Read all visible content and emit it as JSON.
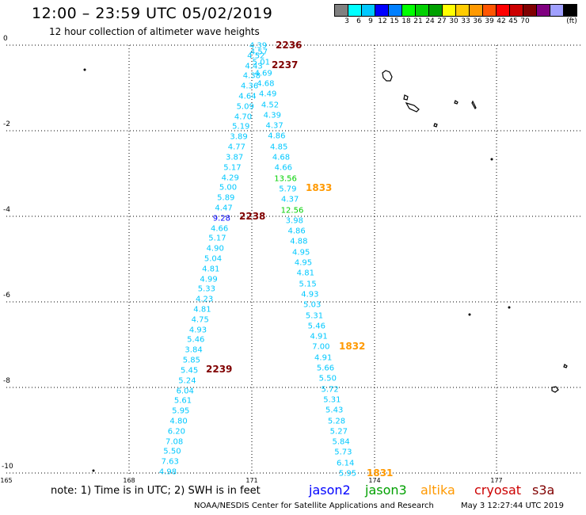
{
  "header": {
    "title": "12:00 – 23:59 UTC 05/02/2019",
    "subtitle": "12 hour collection of altimeter wave heights"
  },
  "colorbar": {
    "unit": "(ft)",
    "colors": [
      "#808080",
      "#00ffff",
      "#00c8ff",
      "#0000ff",
      "#0080ff",
      "#00ff00",
      "#00d000",
      "#00a000",
      "#ffff00",
      "#ffcc00",
      "#ff9900",
      "#ff5500",
      "#ff0000",
      "#cc0000",
      "#800000",
      "#800080",
      "#a0a0ff",
      "#000000"
    ],
    "labels": [
      "3",
      "6",
      "9",
      "12",
      "15",
      "18",
      "21",
      "24",
      "27",
      "30",
      "33",
      "36",
      "39",
      "42",
      "45",
      "70"
    ]
  },
  "axes": {
    "y": [
      "0",
      "-2",
      "-4",
      "-6",
      "-8",
      "-10"
    ],
    "x": [
      "165",
      "168",
      "171",
      "174",
      "177"
    ]
  },
  "tracks": [
    {
      "name": "west",
      "values": [
        "4.39",
        "4.52",
        "4.43",
        "4.38",
        "4.36",
        "4.64",
        "5.09",
        "4.70",
        "5.19",
        "3.89",
        "4.77",
        "3.87",
        "5.17",
        "4.29",
        "5.00",
        "5.89",
        "4.47",
        "9.28",
        "4.66",
        "5.17",
        "4.90",
        "5.04",
        "4.81",
        "4.99",
        "5.33",
        "4.23",
        "4.81",
        "4.75",
        "4.93",
        "5.46",
        "3.84",
        "5.85",
        "5.45",
        "5.24",
        "6.04",
        "5.61",
        "5.95",
        "4.80",
        "6.20",
        "7.08",
        "5.50",
        "7.63",
        "4.98"
      ],
      "colors": [
        "#00c8ff",
        "#00c8ff",
        "#00c8ff",
        "#00c8ff",
        "#00c8ff",
        "#00c8ff",
        "#00c8ff",
        "#00c8ff",
        "#00c8ff",
        "#00c8ff",
        "#00c8ff",
        "#00c8ff",
        "#00c8ff",
        "#00c8ff",
        "#00c8ff",
        "#00c8ff",
        "#00c8ff",
        "#0000ff",
        "#00c8ff",
        "#00c8ff",
        "#00c8ff",
        "#00c8ff",
        "#00c8ff",
        "#00c8ff",
        "#00c8ff",
        "#00c8ff",
        "#00c8ff",
        "#00c8ff",
        "#00c8ff",
        "#00c8ff",
        "#00c8ff",
        "#00c8ff",
        "#00c8ff",
        "#00c8ff",
        "#00c8ff",
        "#00c8ff",
        "#00c8ff",
        "#00c8ff",
        "#00c8ff",
        "#00c8ff",
        "#00c8ff",
        "#00c8ff",
        "#00c8ff"
      ]
    },
    {
      "name": "east",
      "values": [
        "4.57",
        "5.01",
        "4.69",
        "4.68",
        "4.49",
        "4.52",
        "4.39",
        "4.37",
        "4.86",
        "4.85",
        "4.68",
        "4.66",
        "13.56",
        "5.79",
        "4.37",
        "12.56",
        "3.98",
        "4.86",
        "4.88",
        "4.95",
        "4.95",
        "4.81",
        "5.15",
        "4.93",
        "5.03",
        "5.31",
        "5.46",
        "4.91",
        "7.00",
        "4.91",
        "5.66",
        "5.50",
        "5.72",
        "5.31",
        "5.43",
        "5.28",
        "5.27",
        "5.84",
        "5.73",
        "6.14",
        "5.95"
      ],
      "colors": [
        "#00c8ff",
        "#00c8ff",
        "#00c8ff",
        "#00c8ff",
        "#00c8ff",
        "#00c8ff",
        "#00c8ff",
        "#00c8ff",
        "#00c8ff",
        "#00c8ff",
        "#00c8ff",
        "#00c8ff",
        "#00d000",
        "#00c8ff",
        "#00c8ff",
        "#00d000",
        "#00c8ff",
        "#00c8ff",
        "#00c8ff",
        "#00c8ff",
        "#00c8ff",
        "#00c8ff",
        "#00c8ff",
        "#00c8ff",
        "#00c8ff",
        "#00c8ff",
        "#00c8ff",
        "#00c8ff",
        "#00c8ff",
        "#00c8ff",
        "#00c8ff",
        "#00c8ff",
        "#00c8ff",
        "#00c8ff",
        "#00c8ff",
        "#00c8ff",
        "#00c8ff",
        "#00c8ff",
        "#00c8ff",
        "#00c8ff",
        "#00c8ff"
      ]
    }
  ],
  "time_labels": [
    {
      "text": "2236",
      "color": "#800000"
    },
    {
      "text": "2237",
      "color": "#800000"
    },
    {
      "text": "2238",
      "color": "#800000"
    },
    {
      "text": "2239",
      "color": "#800000"
    },
    {
      "text": "1833",
      "color": "#ff9900"
    },
    {
      "text": "1832",
      "color": "#ff9900"
    },
    {
      "text": "1831",
      "color": "#ff9900"
    }
  ],
  "footer": {
    "note": "note:  1) Time is in UTC;  2) SWH is in feet",
    "legend": [
      {
        "text": "jason2",
        "color": "#0000ff"
      },
      {
        "text": "jason3",
        "color": "#00a000"
      },
      {
        "text": "altika",
        "color": "#ff9900"
      },
      {
        "text": "cryosat",
        "color": "#cc0000"
      },
      {
        "text": "s3a",
        "color": "#800000"
      }
    ],
    "credit": "NOAA/NESDIS Center for Satellite Applications and Research",
    "timestamp": "May  3 12:27:44 UTC 2019"
  }
}
